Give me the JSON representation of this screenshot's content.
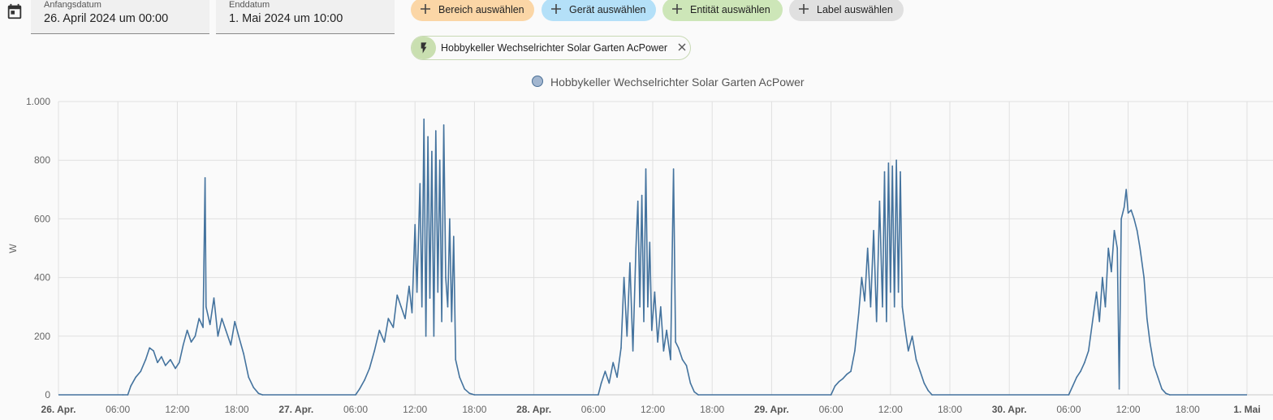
{
  "filters": {
    "start_label": "Anfangsdatum",
    "start_value": "26. April 2024 um 00:00",
    "end_label": "Enddatum",
    "end_value": "1. Mai 2024 um 10:00"
  },
  "targets": [
    {
      "label": "Bereich auswählen",
      "color": "#fbd6a6"
    },
    {
      "label": "Gerät auswählen",
      "color": "#b4e0f8"
    },
    {
      "label": "Entität auswählen",
      "color": "#cde6b8"
    },
    {
      "label": "Label auswählen",
      "color": "#e0e0e0"
    }
  ],
  "selected_entity": {
    "name": "Hobbykeller Wechselrichter Solar Garten AcPower",
    "icon": "flash-icon"
  },
  "chart_data": {
    "type": "line",
    "legend": "Hobbykeller Wechselrichter Solar Garten AcPower",
    "legend_position": "top-center",
    "ylabel": "W",
    "ylim": [
      0,
      1000
    ],
    "yticks": [
      0,
      200,
      400,
      600,
      800,
      1000
    ],
    "ytick_labels": [
      "0",
      "200",
      "400",
      "600",
      "800",
      "1.000"
    ],
    "xlim_hours": [
      0,
      120
    ],
    "xticks": [
      {
        "h": 0,
        "label": "26. Apr.",
        "bold": true
      },
      {
        "h": 6,
        "label": "06:00"
      },
      {
        "h": 12,
        "label": "12:00"
      },
      {
        "h": 18,
        "label": "18:00"
      },
      {
        "h": 24,
        "label": "27. Apr.",
        "bold": true
      },
      {
        "h": 30,
        "label": "06:00"
      },
      {
        "h": 36,
        "label": "12:00"
      },
      {
        "h": 42,
        "label": "18:00"
      },
      {
        "h": 48,
        "label": "28. Apr.",
        "bold": true
      },
      {
        "h": 54,
        "label": "06:00"
      },
      {
        "h": 60,
        "label": "12:00"
      },
      {
        "h": 66,
        "label": "18:00"
      },
      {
        "h": 72,
        "label": "29. Apr.",
        "bold": true
      },
      {
        "h": 78,
        "label": "06:00"
      },
      {
        "h": 84,
        "label": "12:00"
      },
      {
        "h": 90,
        "label": "18:00"
      },
      {
        "h": 96,
        "label": "30. Apr.",
        "bold": true
      },
      {
        "h": 102,
        "label": "06:00"
      },
      {
        "h": 108,
        "label": "12:00"
      },
      {
        "h": 114,
        "label": "18:00"
      },
      {
        "h": 120,
        "label": "1. Mai",
        "bold": true
      }
    ],
    "grid": true,
    "series": [
      {
        "name": "Hobbykeller Wechselrichter Solar Garten AcPower",
        "color": "#44739e",
        "x_unit": "hours since 26. Apr. 00:00",
        "points": [
          [
            6.5,
            0
          ],
          [
            7.0,
            0
          ],
          [
            7.3,
            30
          ],
          [
            7.8,
            60
          ],
          [
            8.3,
            80
          ],
          [
            8.8,
            120
          ],
          [
            9.2,
            160
          ],
          [
            9.6,
            150
          ],
          [
            10.0,
            110
          ],
          [
            10.4,
            130
          ],
          [
            10.8,
            100
          ],
          [
            11.3,
            120
          ],
          [
            11.8,
            90
          ],
          [
            12.2,
            110
          ],
          [
            12.6,
            170
          ],
          [
            13.0,
            220
          ],
          [
            13.4,
            180
          ],
          [
            13.8,
            200
          ],
          [
            14.2,
            260
          ],
          [
            14.6,
            230
          ],
          [
            14.8,
            740
          ],
          [
            14.9,
            300
          ],
          [
            15.3,
            240
          ],
          [
            15.7,
            330
          ],
          [
            16.1,
            200
          ],
          [
            16.5,
            260
          ],
          [
            16.9,
            220
          ],
          [
            17.4,
            170
          ],
          [
            17.8,
            250
          ],
          [
            18.2,
            200
          ],
          [
            18.7,
            140
          ],
          [
            19.2,
            60
          ],
          [
            19.7,
            25
          ],
          [
            20.2,
            5
          ],
          [
            20.6,
            0
          ],
          [
            30.0,
            0
          ],
          [
            30.4,
            20
          ],
          [
            30.9,
            50
          ],
          [
            31.4,
            90
          ],
          [
            31.9,
            150
          ],
          [
            32.4,
            220
          ],
          [
            32.9,
            180
          ],
          [
            33.3,
            260
          ],
          [
            33.8,
            230
          ],
          [
            34.2,
            340
          ],
          [
            34.6,
            300
          ],
          [
            35.0,
            260
          ],
          [
            35.4,
            370
          ],
          [
            35.7,
            280
          ],
          [
            36.0,
            580
          ],
          [
            36.2,
            350
          ],
          [
            36.5,
            720
          ],
          [
            36.7,
            300
          ],
          [
            36.9,
            940
          ],
          [
            37.1,
            200
          ],
          [
            37.3,
            880
          ],
          [
            37.5,
            330
          ],
          [
            37.7,
            830
          ],
          [
            37.9,
            200
          ],
          [
            38.1,
            900
          ],
          [
            38.3,
            350
          ],
          [
            38.5,
            800
          ],
          [
            38.7,
            250
          ],
          [
            38.9,
            920
          ],
          [
            39.1,
            400
          ],
          [
            39.3,
            300
          ],
          [
            39.5,
            600
          ],
          [
            39.7,
            250
          ],
          [
            39.9,
            540
          ],
          [
            40.1,
            120
          ],
          [
            40.5,
            60
          ],
          [
            41.0,
            20
          ],
          [
            41.5,
            5
          ],
          [
            42.0,
            0
          ],
          [
            54.5,
            0
          ],
          [
            54.8,
            40
          ],
          [
            55.2,
            80
          ],
          [
            55.6,
            40
          ],
          [
            56.0,
            110
          ],
          [
            56.4,
            60
          ],
          [
            56.8,
            160
          ],
          [
            57.1,
            400
          ],
          [
            57.4,
            200
          ],
          [
            57.7,
            450
          ],
          [
            58.0,
            150
          ],
          [
            58.3,
            500
          ],
          [
            58.5,
            660
          ],
          [
            58.7,
            300
          ],
          [
            58.9,
            680
          ],
          [
            59.1,
            250
          ],
          [
            59.3,
            770
          ],
          [
            59.5,
            300
          ],
          [
            59.7,
            520
          ],
          [
            59.9,
            220
          ],
          [
            60.2,
            350
          ],
          [
            60.5,
            180
          ],
          [
            60.8,
            300
          ],
          [
            61.1,
            150
          ],
          [
            61.4,
            220
          ],
          [
            61.8,
            120
          ],
          [
            62.1,
            770
          ],
          [
            62.3,
            180
          ],
          [
            62.6,
            160
          ],
          [
            63.0,
            120
          ],
          [
            63.4,
            100
          ],
          [
            63.8,
            40
          ],
          [
            64.2,
            10
          ],
          [
            64.6,
            0
          ],
          [
            78.0,
            0
          ],
          [
            78.4,
            30
          ],
          [
            78.8,
            45
          ],
          [
            79.2,
            55
          ],
          [
            79.6,
            70
          ],
          [
            80.0,
            80
          ],
          [
            80.4,
            150
          ],
          [
            80.8,
            280
          ],
          [
            81.1,
            400
          ],
          [
            81.4,
            320
          ],
          [
            81.7,
            500
          ],
          [
            82.0,
            300
          ],
          [
            82.3,
            560
          ],
          [
            82.6,
            250
          ],
          [
            82.9,
            660
          ],
          [
            83.2,
            300
          ],
          [
            83.4,
            760
          ],
          [
            83.6,
            250
          ],
          [
            83.8,
            790
          ],
          [
            84.0,
            350
          ],
          [
            84.2,
            780
          ],
          [
            84.4,
            300
          ],
          [
            84.6,
            800
          ],
          [
            84.8,
            350
          ],
          [
            85.0,
            760
          ],
          [
            85.2,
            300
          ],
          [
            85.5,
            220
          ],
          [
            85.8,
            150
          ],
          [
            86.2,
            200
          ],
          [
            86.6,
            120
          ],
          [
            87.0,
            80
          ],
          [
            87.4,
            40
          ],
          [
            87.8,
            15
          ],
          [
            88.2,
            0
          ],
          [
            102.0,
            0
          ],
          [
            102.4,
            30
          ],
          [
            102.8,
            60
          ],
          [
            103.2,
            80
          ],
          [
            103.6,
            110
          ],
          [
            104.0,
            150
          ],
          [
            104.4,
            250
          ],
          [
            104.8,
            350
          ],
          [
            105.1,
            250
          ],
          [
            105.4,
            400
          ],
          [
            105.7,
            300
          ],
          [
            106.0,
            500
          ],
          [
            106.3,
            420
          ],
          [
            106.6,
            560
          ],
          [
            106.9,
            500
          ],
          [
            107.1,
            20
          ],
          [
            107.3,
            600
          ],
          [
            107.6,
            640
          ],
          [
            107.8,
            700
          ],
          [
            108.0,
            620
          ],
          [
            108.3,
            630
          ],
          [
            108.6,
            600
          ],
          [
            108.9,
            560
          ],
          [
            109.2,
            500
          ],
          [
            109.6,
            400
          ],
          [
            109.9,
            260
          ],
          [
            110.2,
            180
          ],
          [
            110.6,
            100
          ],
          [
            111.0,
            60
          ],
          [
            111.4,
            20
          ],
          [
            111.8,
            5
          ],
          [
            112.2,
            0
          ]
        ]
      }
    ]
  }
}
